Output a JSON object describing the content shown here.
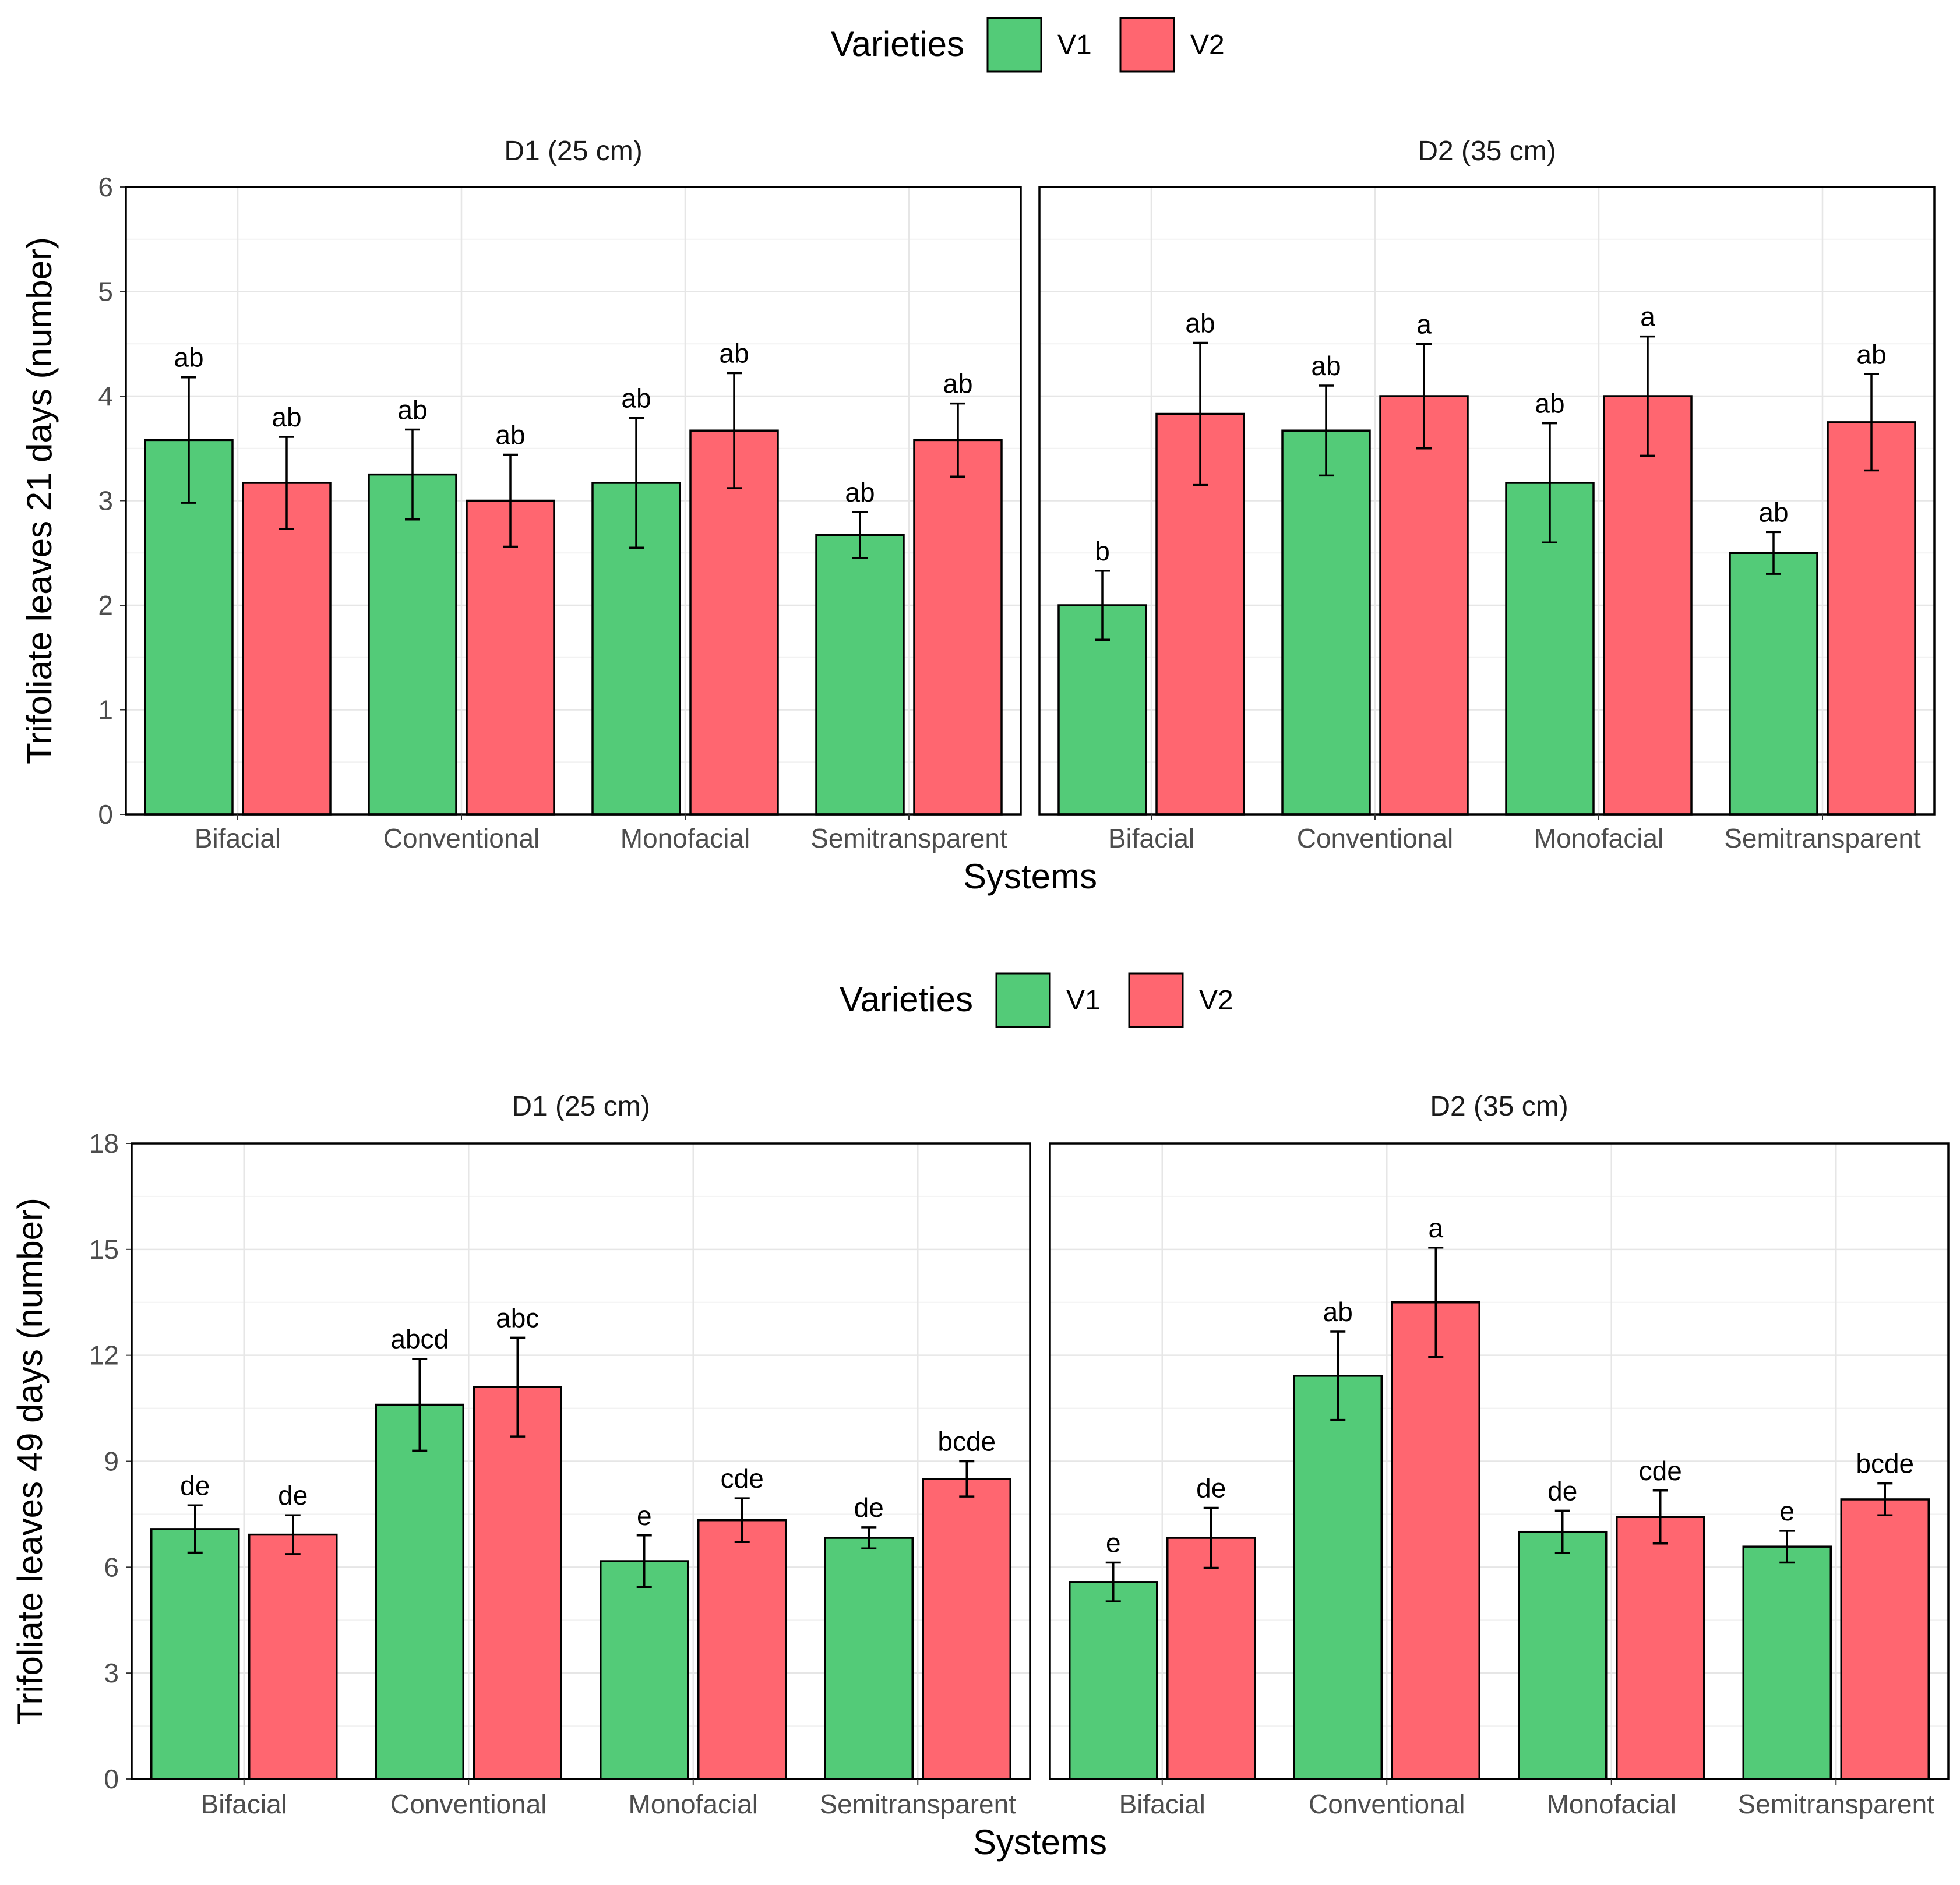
{
  "legend": {
    "title": "Varieties",
    "items": [
      {
        "label": "V1",
        "color": "#53CB78"
      },
      {
        "label": "V2",
        "color": "#FF6670"
      }
    ]
  },
  "chart_data": [
    {
      "type": "bar",
      "facets": [
        "D1 (25 cm)",
        "D2 (35 cm)"
      ],
      "categories": [
        "Bifacial",
        "Conventional",
        "Monofacial",
        "Semitransparent"
      ],
      "xlabel": "Systems",
      "ylabel": "Trifoliate leaves 21 days (number)",
      "ylim": [
        0,
        6
      ],
      "yticks": [
        0,
        1,
        2,
        3,
        4,
        5,
        6
      ],
      "series": [
        {
          "name": "V1",
          "values": [
            [
              3.58,
              3.25,
              3.17,
              2.67
            ],
            [
              2.0,
              3.67,
              3.17,
              2.5
            ]
          ],
          "errors": [
            [
              0.6,
              0.43,
              0.62,
              0.22
            ],
            [
              0.33,
              0.43,
              0.57,
              0.2
            ]
          ],
          "labels": [
            [
              "ab",
              "ab",
              "ab",
              "ab"
            ],
            [
              "b",
              "ab",
              "ab",
              "ab"
            ]
          ]
        },
        {
          "name": "V2",
          "values": [
            [
              3.17,
              3.0,
              3.67,
              3.58
            ],
            [
              3.83,
              4.0,
              4.0,
              3.75
            ]
          ],
          "errors": [
            [
              0.44,
              0.44,
              0.55,
              0.35
            ],
            [
              0.68,
              0.5,
              0.57,
              0.46
            ]
          ],
          "labels": [
            [
              "ab",
              "ab",
              "ab",
              "ab"
            ],
            [
              "ab",
              "a",
              "a",
              "ab"
            ]
          ]
        }
      ],
      "grid": true
    },
    {
      "type": "bar",
      "facets": [
        "D1 (25 cm)",
        "D2 (35 cm)"
      ],
      "categories": [
        "Bifacial",
        "Conventional",
        "Monofacial",
        "Semitransparent"
      ],
      "xlabel": "Systems",
      "ylabel": "Trifoliate leaves 49 days (number)",
      "ylim": [
        0,
        18
      ],
      "yticks": [
        0,
        3,
        6,
        9,
        12,
        15,
        18
      ],
      "series": [
        {
          "name": "V1",
          "values": [
            [
              7.08,
              10.6,
              6.17,
              6.83
            ],
            [
              5.58,
              11.42,
              7.0,
              6.58
            ]
          ],
          "errors": [
            [
              0.67,
              1.3,
              0.73,
              0.3
            ],
            [
              0.55,
              1.25,
              0.6,
              0.45
            ]
          ],
          "labels": [
            [
              "de",
              "abcd",
              "e",
              "de"
            ],
            [
              "e",
              "ab",
              "de",
              "e"
            ]
          ]
        },
        {
          "name": "V2",
          "values": [
            [
              6.92,
              11.1,
              7.33,
              8.5
            ],
            [
              6.83,
              13.5,
              7.42,
              7.92
            ]
          ],
          "errors": [
            [
              0.55,
              1.4,
              0.62,
              0.5
            ],
            [
              0.85,
              1.55,
              0.75,
              0.45
            ]
          ],
          "labels": [
            [
              "de",
              "abc",
              "cde",
              "bcde"
            ],
            [
              "de",
              "a",
              "cde",
              "bcde"
            ]
          ]
        }
      ],
      "grid": true
    }
  ]
}
